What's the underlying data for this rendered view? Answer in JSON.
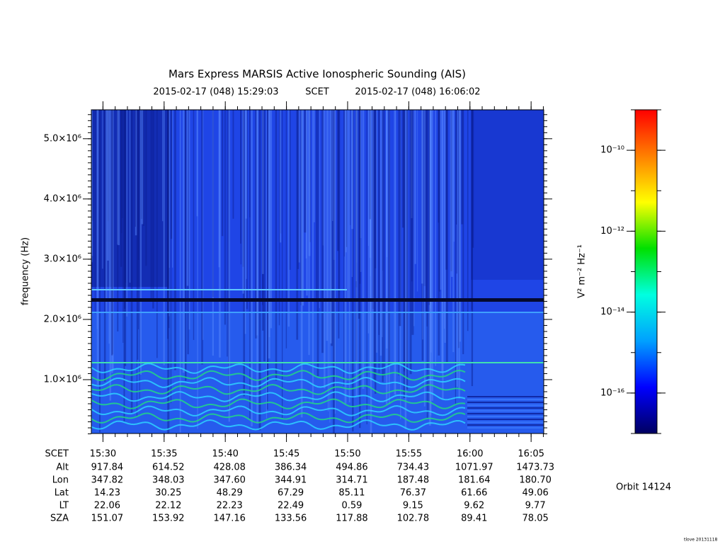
{
  "chart_data": {
    "type": "spectrogram",
    "title": "Mars Express MARSIS Active Ionospheric Sounding (AIS)",
    "subtitle_start": "2015-02-17 (048) 15:29:03",
    "subtitle_mid": "SCET",
    "subtitle_end": "2015-02-17 (048) 16:06:02",
    "y_label": "frequency (Hz)",
    "xlim": [
      "15:29:03",
      "16:06:02"
    ],
    "xticks": [
      "15:30",
      "15:35",
      "15:40",
      "15:45",
      "15:50",
      "15:55",
      "16:00",
      "16:05"
    ],
    "ylim": [
      106000,
      5480000
    ],
    "yticks": [
      {
        "value": 1000000,
        "label": "1.0×10⁶"
      },
      {
        "value": 2000000,
        "label": "2.0×10⁶"
      },
      {
        "value": 3000000,
        "label": "3.0×10⁶"
      },
      {
        "value": 4000000,
        "label": "4.0×10⁶"
      },
      {
        "value": 5000000,
        "label": "5.0×10⁶"
      }
    ],
    "colorbar_label": "V² m⁻² Hz⁻¹",
    "log_scale_colorbar": true,
    "zlim": [
      1e-17,
      1e-09
    ],
    "zticks": [
      {
        "value": 1e-16,
        "label": "10⁻¹⁶"
      },
      {
        "value": 1e-14,
        "label": "10⁻¹⁴"
      },
      {
        "value": 1e-12,
        "label": "10⁻¹²"
      },
      {
        "value": 1e-10,
        "label": "10⁻¹⁰"
      }
    ],
    "colormap": [
      "#000060",
      "#0000ff",
      "#00a0ff",
      "#00ffe0",
      "#00e000",
      "#ffff00",
      "#ff8000",
      "#ff0000"
    ],
    "ephemeris_x_label": "SCET",
    "ephemeris": [
      {
        "name": "Alt",
        "values": [
          "917.84",
          "614.52",
          "428.08",
          "386.34",
          "494.86",
          "734.43",
          "1071.97",
          "1473.73"
        ]
      },
      {
        "name": "Lon",
        "values": [
          "347.82",
          "348.03",
          "347.60",
          "344.91",
          "314.71",
          "187.48",
          "181.64",
          "180.70"
        ]
      },
      {
        "name": "Lat",
        "values": [
          "14.23",
          "30.25",
          "48.29",
          "67.29",
          "85.11",
          "76.37",
          "61.66",
          "49.06"
        ]
      },
      {
        "name": "LT",
        "values": [
          "22.06",
          "22.12",
          "22.23",
          "22.49",
          "0.59",
          "9.15",
          "9.62",
          "9.77"
        ]
      },
      {
        "name": "SZA",
        "values": [
          "151.07",
          "153.92",
          "147.16",
          "133.56",
          "117.88",
          "102.78",
          "89.41",
          "78.05"
        ]
      }
    ],
    "orbit": "Orbit 14124",
    "footer": "tlove 20131118"
  }
}
